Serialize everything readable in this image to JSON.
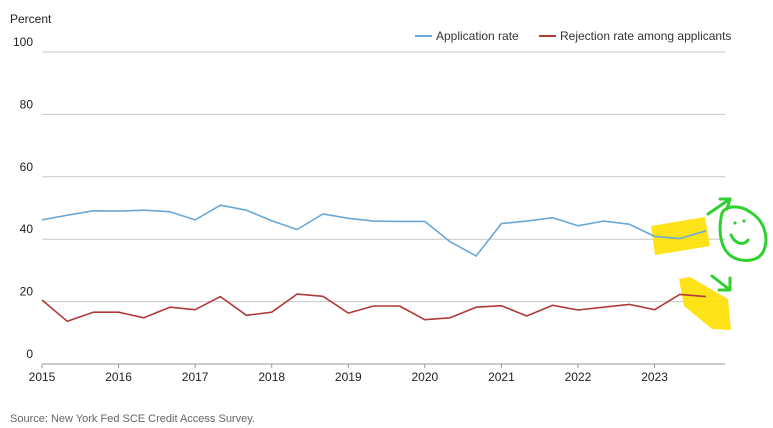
{
  "chart_data": {
    "type": "line",
    "ylabel": "Percent",
    "ylim": [
      0,
      100
    ],
    "yticks": [
      0,
      20,
      40,
      60,
      80,
      100
    ],
    "x_years": [
      "2015",
      "2016",
      "2017",
      "2018",
      "2019",
      "2020",
      "2021",
      "2022",
      "2023"
    ],
    "x": [
      2015.0,
      2015.33,
      2015.67,
      2016.0,
      2016.33,
      2016.67,
      2017.0,
      2017.33,
      2017.67,
      2018.0,
      2018.33,
      2018.67,
      2019.0,
      2019.33,
      2019.67,
      2020.0,
      2020.33,
      2020.67,
      2021.0,
      2021.33,
      2021.67,
      2022.0,
      2022.33,
      2022.67,
      2023.0,
      2023.33,
      2023.67
    ],
    "series": [
      {
        "name": "Application rate",
        "color": "#6aa8d8",
        "values": [
          46.2,
          47.7,
          49.1,
          49.0,
          49.3,
          48.8,
          46.2,
          50.9,
          49.3,
          45.9,
          43.1,
          48.1,
          46.7,
          45.8,
          45.7,
          45.7,
          39.2,
          34.6,
          45.0,
          45.8,
          46.9,
          44.3,
          45.8,
          44.8,
          40.9,
          40.2,
          42.7
        ]
      },
      {
        "name": "Rejection rate among applicants",
        "color": "#b03a3a",
        "values": [
          20.5,
          13.7,
          16.6,
          16.6,
          14.8,
          18.2,
          17.4,
          21.6,
          15.6,
          16.6,
          22.4,
          21.7,
          16.3,
          18.6,
          18.6,
          14.2,
          14.8,
          18.2,
          18.7,
          15.4,
          18.8,
          17.3,
          18.2,
          19.1,
          17.4,
          22.3,
          21.6
        ]
      }
    ],
    "legend_position": "top-right",
    "grid": "horizontal"
  },
  "source": "Source: New York Fed SCE Credit Access Survey.",
  "highlight_color": "#ffe000",
  "annotation_color": "#2fd12f"
}
